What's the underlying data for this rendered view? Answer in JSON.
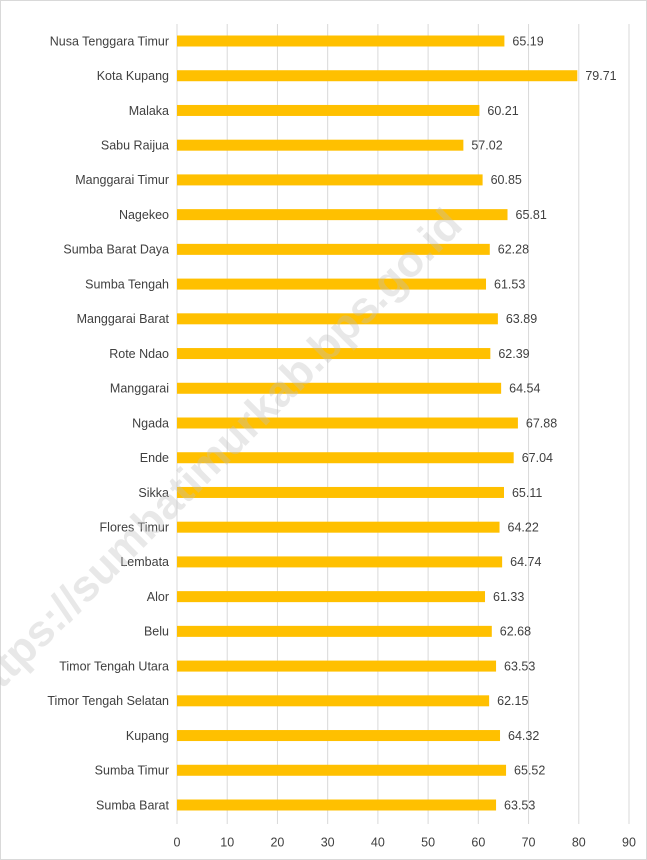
{
  "chart_data": {
    "type": "bar",
    "orientation": "horizontal",
    "categories": [
      "Nusa Tenggara Timur",
      "Kota Kupang",
      "Malaka",
      "Sabu Raijua",
      "Manggarai Timur",
      "Nagekeo",
      "Sumba Barat Daya",
      "Sumba Tengah",
      "Manggarai Barat",
      "Rote Ndao",
      "Manggarai",
      "Ngada",
      "Ende",
      "Sikka",
      "Flores Timur",
      "Lembata",
      "Alor",
      "Belu",
      "Timor Tengah Utara",
      "Timor Tengah Selatan",
      "Kupang",
      "Sumba Timur",
      "Sumba Barat"
    ],
    "values": [
      65.19,
      79.71,
      60.21,
      57.02,
      60.85,
      65.81,
      62.28,
      61.53,
      63.89,
      62.39,
      64.54,
      67.88,
      67.04,
      65.11,
      64.22,
      64.74,
      61.33,
      62.68,
      63.53,
      62.15,
      64.32,
      65.52,
      63.53
    ],
    "color": "#ffc000",
    "xlim": [
      0,
      90
    ],
    "xticks": [
      0,
      10,
      20,
      30,
      40,
      50,
      60,
      70,
      80,
      90
    ],
    "grid": true,
    "watermark": "https://sumbatimurkab.bps.go.id"
  }
}
